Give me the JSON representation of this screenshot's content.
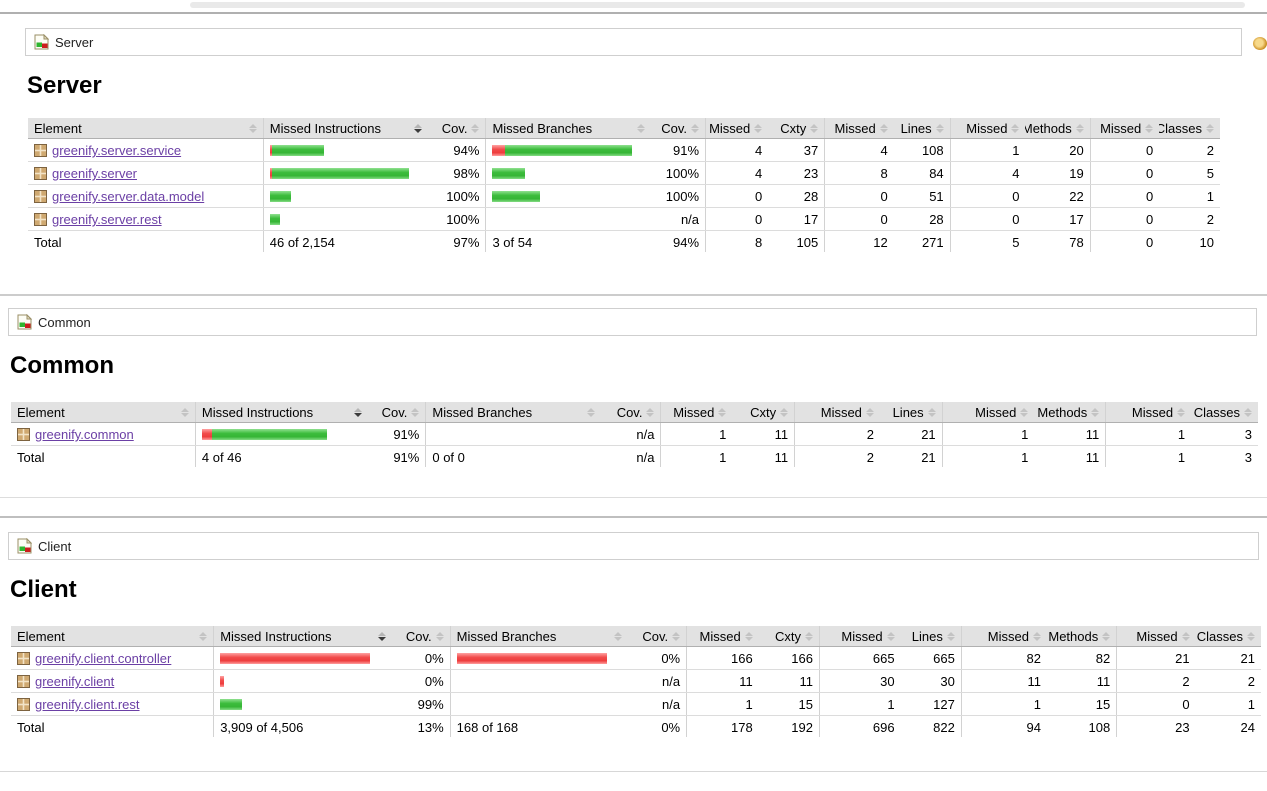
{
  "colors": {
    "bar_green": "#3cbc3c",
    "bar_red": "#ee3d3d",
    "link_purple": "#6b3fa5",
    "header_bg": "#e2e2e2",
    "rule_gray": "#b0b0b0"
  },
  "icons": {
    "breadcrumb": "group-report-icon",
    "package": "package-icon",
    "session": "session-icon",
    "sort": "sort-arrows-icon"
  },
  "columns": [
    {
      "label": "Element",
      "type": "element",
      "align": "left"
    },
    {
      "label": "Missed Instructions",
      "type": "bar",
      "align": "left",
      "sorted": true
    },
    {
      "label": "Cov.",
      "type": "ctr2",
      "align": "right"
    },
    {
      "label": "Missed Branches",
      "type": "bar",
      "align": "left"
    },
    {
      "label": "Cov.",
      "type": "ctr2",
      "align": "right"
    },
    {
      "label": "Missed",
      "type": "ctr1",
      "align": "right"
    },
    {
      "label": "Cxty",
      "type": "ctr2",
      "align": "right"
    },
    {
      "label": "Missed",
      "type": "ctr1",
      "align": "right"
    },
    {
      "label": "Lines",
      "type": "ctr2",
      "align": "right"
    },
    {
      "label": "Missed",
      "type": "ctr1",
      "align": "right"
    },
    {
      "label": "Methods",
      "type": "ctr2",
      "align": "right"
    },
    {
      "label": "Missed",
      "type": "ctr1",
      "align": "right"
    },
    {
      "label": "Classes",
      "type": "ctr2",
      "align": "right"
    }
  ],
  "sections": [
    {
      "breadcrumb": "Server",
      "title": "Server",
      "rows": [
        {
          "element": "greenify.server.service",
          "instr_bar": {
            "red": 2,
            "green": 52
          },
          "instr_cov": "94%",
          "branch_bar": {
            "red": 13,
            "green": 127
          },
          "branch_cov": "91%",
          "counters": [
            "4",
            "37",
            "4",
            "108",
            "1",
            "20",
            "0",
            "2"
          ]
        },
        {
          "element": "greenify.server",
          "instr_bar": {
            "red": 2,
            "green": 137
          },
          "instr_cov": "98%",
          "branch_bar": {
            "red": 0,
            "green": 33
          },
          "branch_cov": "100%",
          "counters": [
            "4",
            "23",
            "8",
            "84",
            "4",
            "19",
            "0",
            "5"
          ]
        },
        {
          "element": "greenify.server.data.model",
          "instr_bar": {
            "red": 0,
            "green": 21
          },
          "instr_cov": "100%",
          "branch_bar": {
            "red": 0,
            "green": 48
          },
          "branch_cov": "100%",
          "counters": [
            "0",
            "28",
            "0",
            "51",
            "0",
            "22",
            "0",
            "1"
          ]
        },
        {
          "element": "greenify.server.rest",
          "instr_bar": {
            "red": 0,
            "green": 10
          },
          "instr_cov": "100%",
          "branch_bar": {
            "red": 0,
            "green": 0
          },
          "branch_cov": "n/a",
          "counters": [
            "0",
            "17",
            "0",
            "28",
            "0",
            "17",
            "0",
            "2"
          ]
        }
      ],
      "total": {
        "label": "Total",
        "instr": "46 of 2,154",
        "instr_cov": "97%",
        "branch": "3 of 54",
        "branch_cov": "94%",
        "counters": [
          "8",
          "105",
          "12",
          "271",
          "5",
          "78",
          "0",
          "10"
        ]
      }
    },
    {
      "breadcrumb": "Common",
      "title": "Common",
      "rows": [
        {
          "element": "greenify.common",
          "instr_bar": {
            "red": 10,
            "green": 115
          },
          "instr_cov": "91%",
          "branch_bar": {
            "red": 0,
            "green": 0
          },
          "branch_cov": "n/a",
          "counters": [
            "1",
            "11",
            "2",
            "21",
            "1",
            "11",
            "1",
            "3"
          ]
        }
      ],
      "total": {
        "label": "Total",
        "instr": "4 of 46",
        "instr_cov": "91%",
        "branch": "0 of 0",
        "branch_cov": "n/a",
        "counters": [
          "1",
          "11",
          "2",
          "21",
          "1",
          "11",
          "1",
          "3"
        ]
      }
    },
    {
      "breadcrumb": "Client",
      "title": "Client",
      "rows": [
        {
          "element": "greenify.client.controller",
          "instr_bar": {
            "red": 150,
            "green": 0
          },
          "instr_cov": "0%",
          "branch_bar": {
            "red": 150,
            "green": 0
          },
          "branch_cov": "0%",
          "counters": [
            "166",
            "166",
            "665",
            "665",
            "82",
            "82",
            "21",
            "21"
          ]
        },
        {
          "element": "greenify.client",
          "instr_bar": {
            "red": 4,
            "green": 0
          },
          "instr_cov": "0%",
          "branch_bar": {
            "red": 0,
            "green": 0
          },
          "branch_cov": "n/a",
          "counters": [
            "11",
            "11",
            "30",
            "30",
            "11",
            "11",
            "2",
            "2"
          ]
        },
        {
          "element": "greenify.client.rest",
          "instr_bar": {
            "red": 0,
            "green": 22
          },
          "instr_cov": "99%",
          "branch_bar": {
            "red": 0,
            "green": 0
          },
          "branch_cov": "n/a",
          "counters": [
            "1",
            "15",
            "1",
            "127",
            "1",
            "15",
            "0",
            "1"
          ]
        }
      ],
      "total": {
        "label": "Total",
        "instr": "3,909 of 4,506",
        "instr_cov": "13%",
        "branch": "168 of 168",
        "branch_cov": "0%",
        "counters": [
          "178",
          "192",
          "696",
          "822",
          "94",
          "108",
          "23",
          "24"
        ]
      }
    }
  ]
}
